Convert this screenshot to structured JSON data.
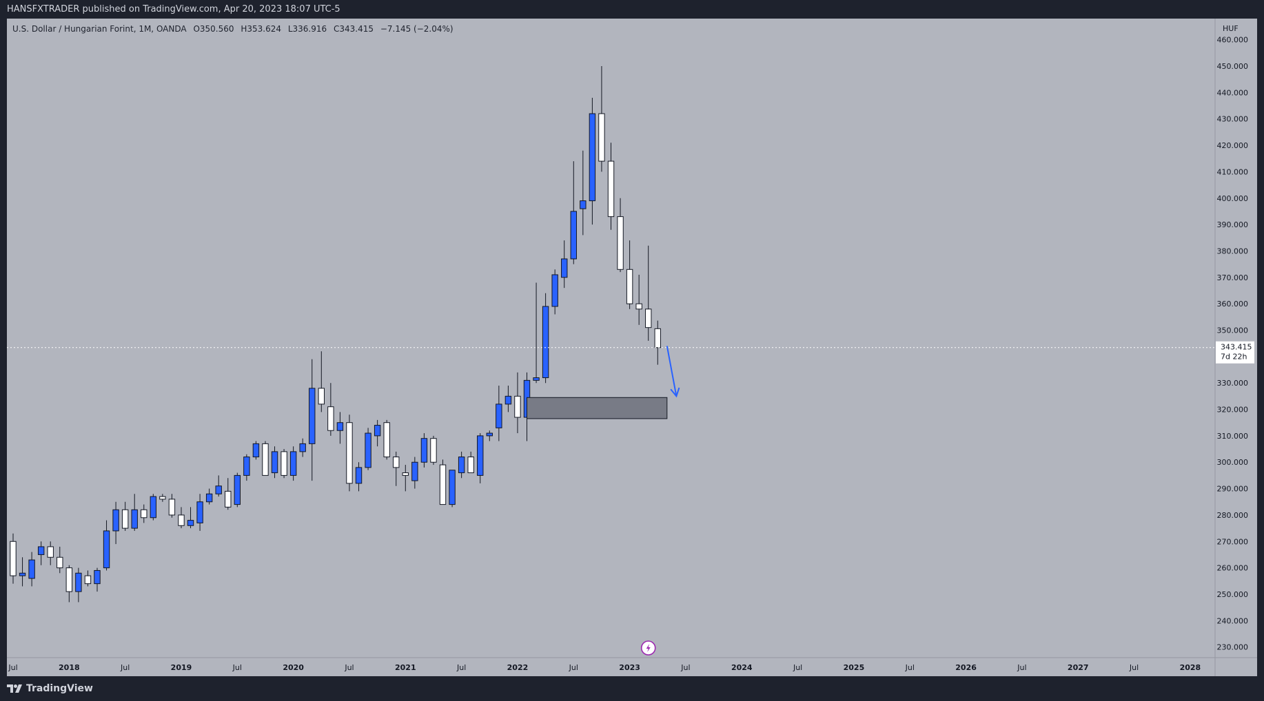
{
  "header": {
    "publisher_text": "HANSFXTRADER published on TradingView.com, Apr 20, 2023 18:07 UTC-5"
  },
  "footer": {
    "brand": "TradingView"
  },
  "colors": {
    "chart_bg": "#b2b5be",
    "frame_bg": "#1e222d",
    "bull_candle": "#2962ff",
    "bear_candle": "#ffffff",
    "zone": "#787b86",
    "arrow": "#2962ff"
  },
  "icons": {
    "logo": "tradingview-logo-icon",
    "marker": "lightning-bolt-icon"
  },
  "legend": {
    "symbol": "U.S. Dollar / Hungarian Forint, 1M, OANDA",
    "o": "O350.560",
    "h": "H353.624",
    "l": "L336.916",
    "c": "C343.415",
    "change": "−7.145 (−2.04%)"
  },
  "price_scale": {
    "currency": "HUF",
    "last_price": "343.415",
    "countdown": "7d 22h"
  },
  "chart_data": {
    "type": "candlestick",
    "title": "U.S. Dollar / Hungarian Forint, 1M, OANDA",
    "interval": "1M",
    "ylabel": "HUF",
    "ylim": [
      226,
      468
    ],
    "y_ticks": [
      230,
      240,
      250,
      260,
      270,
      280,
      290,
      300,
      310,
      320,
      330,
      340,
      350,
      360,
      370,
      380,
      390,
      400,
      410,
      420,
      430,
      440,
      450,
      460
    ],
    "x_ticks": [
      {
        "label": "Jul",
        "x": "2017-07"
      },
      {
        "label": "2018",
        "x": "2018-01"
      },
      {
        "label": "Jul",
        "x": "2018-07"
      },
      {
        "label": "2019",
        "x": "2019-01"
      },
      {
        "label": "Jul",
        "x": "2019-07"
      },
      {
        "label": "2020",
        "x": "2020-01"
      },
      {
        "label": "Jul",
        "x": "2020-07"
      },
      {
        "label": "2021",
        "x": "2021-01"
      },
      {
        "label": "Jul",
        "x": "2021-07"
      },
      {
        "label": "2022",
        "x": "2022-01"
      },
      {
        "label": "Jul",
        "x": "2022-07"
      },
      {
        "label": "2023",
        "x": "2023-01"
      },
      {
        "label": "Jul",
        "x": "2023-07"
      },
      {
        "label": "2024",
        "x": "2024-01"
      },
      {
        "label": "Jul",
        "x": "2024-07"
      },
      {
        "label": "2025",
        "x": "2025-01"
      },
      {
        "label": "Jul",
        "x": "2025-07"
      },
      {
        "label": "2026",
        "x": "2026-01"
      },
      {
        "label": "Jul",
        "x": "2026-07"
      },
      {
        "label": "2027",
        "x": "2027-01"
      },
      {
        "label": "Jul",
        "x": "2027-07"
      },
      {
        "label": "2028",
        "x": "2028-01"
      }
    ],
    "x_range": [
      "2017-07",
      "2028-03"
    ],
    "last_price": 343.415,
    "grid": false,
    "candles": [
      {
        "t": "2017-07",
        "o": 270,
        "h": 273,
        "l": 254,
        "c": 257
      },
      {
        "t": "2017-08",
        "o": 257,
        "h": 264,
        "l": 253,
        "c": 258
      },
      {
        "t": "2017-09",
        "o": 256,
        "h": 266,
        "l": 253,
        "c": 263
      },
      {
        "t": "2017-10",
        "o": 265,
        "h": 270,
        "l": 261,
        "c": 268
      },
      {
        "t": "2017-11",
        "o": 268,
        "h": 270,
        "l": 261,
        "c": 264
      },
      {
        "t": "2017-12",
        "o": 264,
        "h": 268,
        "l": 258,
        "c": 260
      },
      {
        "t": "2018-01",
        "o": 260,
        "h": 261,
        "l": 247,
        "c": 251
      },
      {
        "t": "2018-02",
        "o": 251,
        "h": 260,
        "l": 247,
        "c": 258
      },
      {
        "t": "2018-03",
        "o": 257,
        "h": 259,
        "l": 253,
        "c": 254
      },
      {
        "t": "2018-04",
        "o": 254,
        "h": 260,
        "l": 251,
        "c": 259
      },
      {
        "t": "2018-05",
        "o": 260,
        "h": 278,
        "l": 259,
        "c": 274
      },
      {
        "t": "2018-06",
        "o": 274,
        "h": 285,
        "l": 269,
        "c": 282
      },
      {
        "t": "2018-07",
        "o": 282,
        "h": 285,
        "l": 274,
        "c": 275
      },
      {
        "t": "2018-08",
        "o": 275,
        "h": 288,
        "l": 274,
        "c": 282
      },
      {
        "t": "2018-09",
        "o": 282,
        "h": 284,
        "l": 277,
        "c": 279
      },
      {
        "t": "2018-10",
        "o": 279,
        "h": 288,
        "l": 278,
        "c": 287
      },
      {
        "t": "2018-11",
        "o": 287,
        "h": 288,
        "l": 285,
        "c": 286
      },
      {
        "t": "2018-12",
        "o": 286,
        "h": 288,
        "l": 279,
        "c": 280
      },
      {
        "t": "2019-01",
        "o": 280,
        "h": 283,
        "l": 275,
        "c": 276
      },
      {
        "t": "2019-02",
        "o": 276,
        "h": 283,
        "l": 275,
        "c": 278
      },
      {
        "t": "2019-03",
        "o": 277,
        "h": 288,
        "l": 274,
        "c": 285
      },
      {
        "t": "2019-04",
        "o": 285,
        "h": 290,
        "l": 284,
        "c": 288
      },
      {
        "t": "2019-05",
        "o": 288,
        "h": 295,
        "l": 287,
        "c": 291
      },
      {
        "t": "2019-06",
        "o": 289,
        "h": 294,
        "l": 282,
        "c": 283
      },
      {
        "t": "2019-07",
        "o": 284,
        "h": 296,
        "l": 283,
        "c": 295
      },
      {
        "t": "2019-08",
        "o": 295,
        "h": 303,
        "l": 293,
        "c": 302
      },
      {
        "t": "2019-09",
        "o": 302,
        "h": 308,
        "l": 301,
        "c": 307
      },
      {
        "t": "2019-10",
        "o": 307,
        "h": 308,
        "l": 296,
        "c": 295
      },
      {
        "t": "2019-11",
        "o": 296,
        "h": 306,
        "l": 294,
        "c": 304
      },
      {
        "t": "2019-12",
        "o": 304,
        "h": 305,
        "l": 294,
        "c": 295
      },
      {
        "t": "2020-01",
        "o": 295,
        "h": 306,
        "l": 293,
        "c": 304
      },
      {
        "t": "2020-02",
        "o": 304,
        "h": 309,
        "l": 302,
        "c": 307
      },
      {
        "t": "2020-03",
        "o": 307,
        "h": 339,
        "l": 293,
        "c": 328
      },
      {
        "t": "2020-04",
        "o": 328,
        "h": 342,
        "l": 319,
        "c": 322
      },
      {
        "t": "2020-05",
        "o": 321,
        "h": 330,
        "l": 310,
        "c": 312
      },
      {
        "t": "2020-06",
        "o": 312,
        "h": 319,
        "l": 307,
        "c": 315
      },
      {
        "t": "2020-07",
        "o": 315,
        "h": 318,
        "l": 289,
        "c": 292
      },
      {
        "t": "2020-08",
        "o": 292,
        "h": 300,
        "l": 289,
        "c": 298
      },
      {
        "t": "2020-09",
        "o": 298,
        "h": 313,
        "l": 297,
        "c": 311
      },
      {
        "t": "2020-10",
        "o": 310,
        "h": 316,
        "l": 306,
        "c": 314
      },
      {
        "t": "2020-11",
        "o": 315,
        "h": 316,
        "l": 301,
        "c": 302
      },
      {
        "t": "2020-12",
        "o": 302,
        "h": 304,
        "l": 291,
        "c": 298
      },
      {
        "t": "2021-01",
        "o": 296,
        "h": 299,
        "l": 289,
        "c": 295
      },
      {
        "t": "2021-02",
        "o": 293,
        "h": 302,
        "l": 290,
        "c": 300
      },
      {
        "t": "2021-03",
        "o": 300,
        "h": 311,
        "l": 298,
        "c": 309
      },
      {
        "t": "2021-04",
        "o": 309,
        "h": 310,
        "l": 299,
        "c": 300
      },
      {
        "t": "2021-05",
        "o": 299,
        "h": 301,
        "l": 284,
        "c": 284
      },
      {
        "t": "2021-06",
        "o": 284,
        "h": 297,
        "l": 283,
        "c": 297
      },
      {
        "t": "2021-07",
        "o": 296,
        "h": 304,
        "l": 294,
        "c": 302
      },
      {
        "t": "2021-08",
        "o": 302,
        "h": 304,
        "l": 296,
        "c": 296
      },
      {
        "t": "2021-09",
        "o": 295,
        "h": 311,
        "l": 292,
        "c": 310
      },
      {
        "t": "2021-10",
        "o": 310,
        "h": 312,
        "l": 308,
        "c": 311
      },
      {
        "t": "2021-11",
        "o": 313,
        "h": 329,
        "l": 308,
        "c": 322
      },
      {
        "t": "2021-12",
        "o": 322,
        "h": 329,
        "l": 319,
        "c": 325
      },
      {
        "t": "2022-01",
        "o": 325,
        "h": 334,
        "l": 311,
        "c": 317
      },
      {
        "t": "2022-02",
        "o": 317,
        "h": 334,
        "l": 308,
        "c": 331
      },
      {
        "t": "2022-03",
        "o": 331,
        "h": 368,
        "l": 330,
        "c": 332
      },
      {
        "t": "2022-04",
        "o": 332,
        "h": 364,
        "l": 330,
        "c": 359
      },
      {
        "t": "2022-05",
        "o": 359,
        "h": 373,
        "l": 356,
        "c": 371
      },
      {
        "t": "2022-06",
        "o": 370,
        "h": 384,
        "l": 366,
        "c": 377
      },
      {
        "t": "2022-07",
        "o": 377,
        "h": 414,
        "l": 375,
        "c": 395
      },
      {
        "t": "2022-08",
        "o": 396,
        "h": 418,
        "l": 386,
        "c": 399
      },
      {
        "t": "2022-09",
        "o": 399,
        "h": 438,
        "l": 390,
        "c": 432
      },
      {
        "t": "2022-10",
        "o": 432,
        "h": 450,
        "l": 410,
        "c": 414
      },
      {
        "t": "2022-11",
        "o": 414,
        "h": 421,
        "l": 388,
        "c": 393
      },
      {
        "t": "2022-12",
        "o": 393,
        "h": 400,
        "l": 372,
        "c": 373
      },
      {
        "t": "2023-01",
        "o": 373,
        "h": 384,
        "l": 358,
        "c": 360
      },
      {
        "t": "2023-02",
        "o": 360,
        "h": 371,
        "l": 352,
        "c": 358
      },
      {
        "t": "2023-03",
        "o": 358,
        "h": 382,
        "l": 346,
        "c": 351
      },
      {
        "t": "2023-04",
        "o": 350.56,
        "h": 353.624,
        "l": 336.916,
        "c": 343.415
      }
    ],
    "zone": {
      "x_start": "2022-02",
      "x_end": "2023-05",
      "y_low": 316.5,
      "y_high": 324.5
    },
    "arrow": {
      "from": {
        "t": "2023-05",
        "y": 344
      },
      "to": {
        "t": "2023-06",
        "y": 325
      }
    }
  }
}
